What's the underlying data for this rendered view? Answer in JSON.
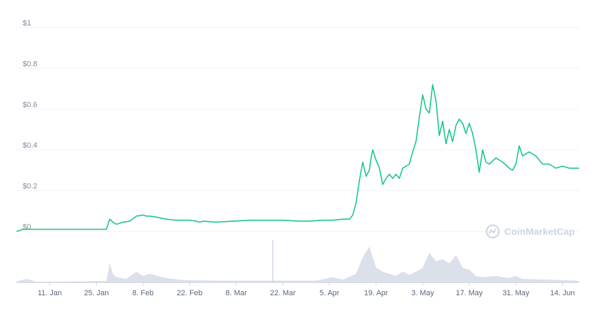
{
  "chart_data": {
    "type": "line",
    "title": "",
    "xlabel": "",
    "ylabel": "",
    "ylim": [
      0,
      1
    ],
    "y_ticks": [
      "$1",
      "$0.8",
      "$0.6",
      "$0.4",
      "$0.2",
      "$0"
    ],
    "y_tick_values": [
      1,
      0.8,
      0.6,
      0.4,
      0.2,
      0
    ],
    "x_ticks": [
      "11. Jan",
      "25. Jan",
      "8. Feb",
      "22. Feb",
      "8. Mar",
      "22. Mar",
      "5. Apr",
      "19. Apr",
      "3. May",
      "17. May",
      "31. May",
      "14. Jun"
    ],
    "x_tick_days": [
      10,
      24,
      38,
      52,
      66,
      80,
      94,
      108,
      122,
      136,
      150,
      164
    ],
    "x_range_days": [
      0,
      169
    ],
    "grid": true,
    "line_color": "#16c784",
    "volume_color": "#cfd6e4",
    "watermark": "CoinMarketCap",
    "series": [
      {
        "x_days": [
          0,
          2,
          10,
          20,
          27,
          28,
          29,
          30,
          31,
          32,
          34,
          36,
          38,
          39,
          40,
          42,
          45,
          48,
          52,
          54,
          55,
          56,
          60,
          65,
          70,
          75,
          80,
          85,
          88,
          92,
          95,
          98,
          100,
          101,
          102,
          103,
          104,
          105,
          106,
          106.5,
          107,
          108,
          109,
          109.5,
          110,
          111,
          112,
          113,
          114,
          115,
          116,
          117,
          118,
          119,
          120,
          121,
          122,
          123,
          124,
          125,
          126,
          127,
          128,
          129,
          130,
          131,
          132,
          133,
          134,
          135,
          136,
          137,
          138,
          139,
          140,
          141,
          142,
          144,
          146,
          148,
          149,
          150,
          151,
          152,
          154,
          156,
          158,
          160,
          162,
          164,
          166,
          169
        ],
        "values": [
          0.0,
          0.01,
          0.01,
          0.01,
          0.01,
          0.06,
          0.045,
          0.035,
          0.04,
          0.045,
          0.05,
          0.075,
          0.08,
          0.075,
          0.075,
          0.07,
          0.06,
          0.055,
          0.055,
          0.05,
          0.045,
          0.05,
          0.045,
          0.05,
          0.055,
          0.055,
          0.055,
          0.05,
          0.05,
          0.055,
          0.055,
          0.06,
          0.06,
          0.08,
          0.14,
          0.25,
          0.34,
          0.27,
          0.3,
          0.36,
          0.4,
          0.35,
          0.31,
          0.27,
          0.23,
          0.26,
          0.28,
          0.26,
          0.28,
          0.26,
          0.31,
          0.32,
          0.33,
          0.39,
          0.44,
          0.56,
          0.67,
          0.6,
          0.58,
          0.72,
          0.64,
          0.47,
          0.54,
          0.43,
          0.5,
          0.44,
          0.52,
          0.55,
          0.53,
          0.48,
          0.53,
          0.48,
          0.4,
          0.29,
          0.4,
          0.34,
          0.33,
          0.36,
          0.34,
          0.31,
          0.3,
          0.33,
          0.42,
          0.37,
          0.39,
          0.37,
          0.33,
          0.33,
          0.31,
          0.32,
          0.31,
          0.31
        ]
      }
    ],
    "volume": {
      "x_days": [
        0,
        3,
        6,
        27,
        28,
        29,
        30,
        33,
        36,
        38,
        40,
        45,
        50,
        60,
        70,
        80,
        90,
        95,
        98,
        102,
        104,
        106,
        108,
        110,
        112,
        114,
        116,
        118,
        120,
        122,
        124,
        126,
        128,
        130,
        132,
        134,
        136,
        138,
        140,
        144,
        148,
        150,
        152,
        156,
        160,
        164,
        168,
        169
      ],
      "values": [
        0.02,
        0.08,
        0.01,
        0.03,
        0.45,
        0.2,
        0.12,
        0.08,
        0.25,
        0.15,
        0.2,
        0.1,
        0.05,
        0.04,
        0.04,
        0.04,
        0.04,
        0.12,
        0.06,
        0.2,
        0.6,
        0.85,
        0.35,
        0.25,
        0.2,
        0.15,
        0.25,
        0.18,
        0.25,
        0.35,
        0.7,
        0.5,
        0.55,
        0.45,
        0.65,
        0.35,
        0.3,
        0.15,
        0.12,
        0.15,
        0.1,
        0.15,
        0.08,
        0.07,
        0.06,
        0.05,
        0.04,
        0.02
      ],
      "spikes": [
        {
          "x_day": 77,
          "value": 1.0
        }
      ]
    }
  }
}
